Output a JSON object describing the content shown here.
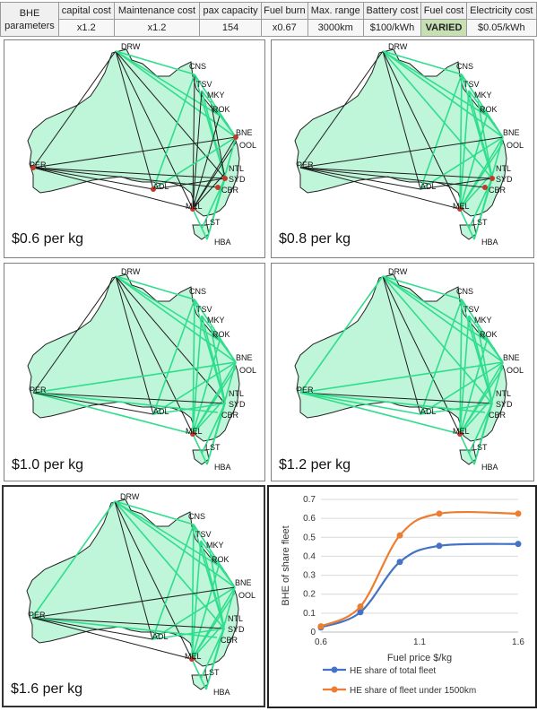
{
  "params": {
    "row_label": "BHE parameters",
    "headers": [
      "capital cost",
      "Maintenance cost",
      "pax capacity",
      "Fuel burn",
      "Max. range",
      "Battery cost",
      "Fuel cost",
      "Electricity cost"
    ],
    "values": [
      "x1.2",
      "x1.2",
      "154",
      "x0.67",
      "3000km",
      "$100/kWh",
      "VARIED",
      "$0.05/kWh"
    ]
  },
  "panels": [
    {
      "label": "$0.6 per kg"
    },
    {
      "label": "$0.8 per kg"
    },
    {
      "label": "$1.0 per kg"
    },
    {
      "label": "$1.2 per kg"
    },
    {
      "label": "$1.6 per kg"
    }
  ],
  "cities": [
    "DRW",
    "CNS",
    "TSV",
    "MKY",
    "ROK",
    "BNE",
    "OOL",
    "NTL",
    "SYD",
    "CBR",
    "MEL",
    "ADL",
    "PER",
    "LST",
    "HBA"
  ],
  "colors": {
    "land": "#bff5d9",
    "route_green": "#2ede8c",
    "route_dark": "#1f1f1f",
    "origin": "#c0392b",
    "blue": "#4472c4",
    "orange": "#ed7d31"
  },
  "chart_data": {
    "type": "line",
    "xlabel": "Fuel price $/kg",
    "ylabel": "BHE of share fleet",
    "xlim": [
      0.6,
      1.6
    ],
    "ylim": [
      0,
      0.7
    ],
    "xticks": [
      "0.6",
      "1.1",
      "1.6"
    ],
    "yticks": [
      "0",
      "0.1",
      "0.2",
      "0.3",
      "0.4",
      "0.5",
      "0.6",
      "0.7"
    ],
    "grid": true,
    "legend_position": "bottom",
    "series": [
      {
        "name": "HE share of total fleet",
        "color": "#4472c4",
        "x": [
          0.6,
          0.8,
          1.0,
          1.2,
          1.6
        ],
        "y": [
          0.025,
          0.105,
          0.37,
          0.455,
          0.465
        ]
      },
      {
        "name": "HE share of fleet under 1500km",
        "color": "#ed7d31",
        "x": [
          0.6,
          0.8,
          1.0,
          1.2,
          1.6
        ],
        "y": [
          0.03,
          0.135,
          0.51,
          0.625,
          0.625
        ]
      }
    ]
  }
}
